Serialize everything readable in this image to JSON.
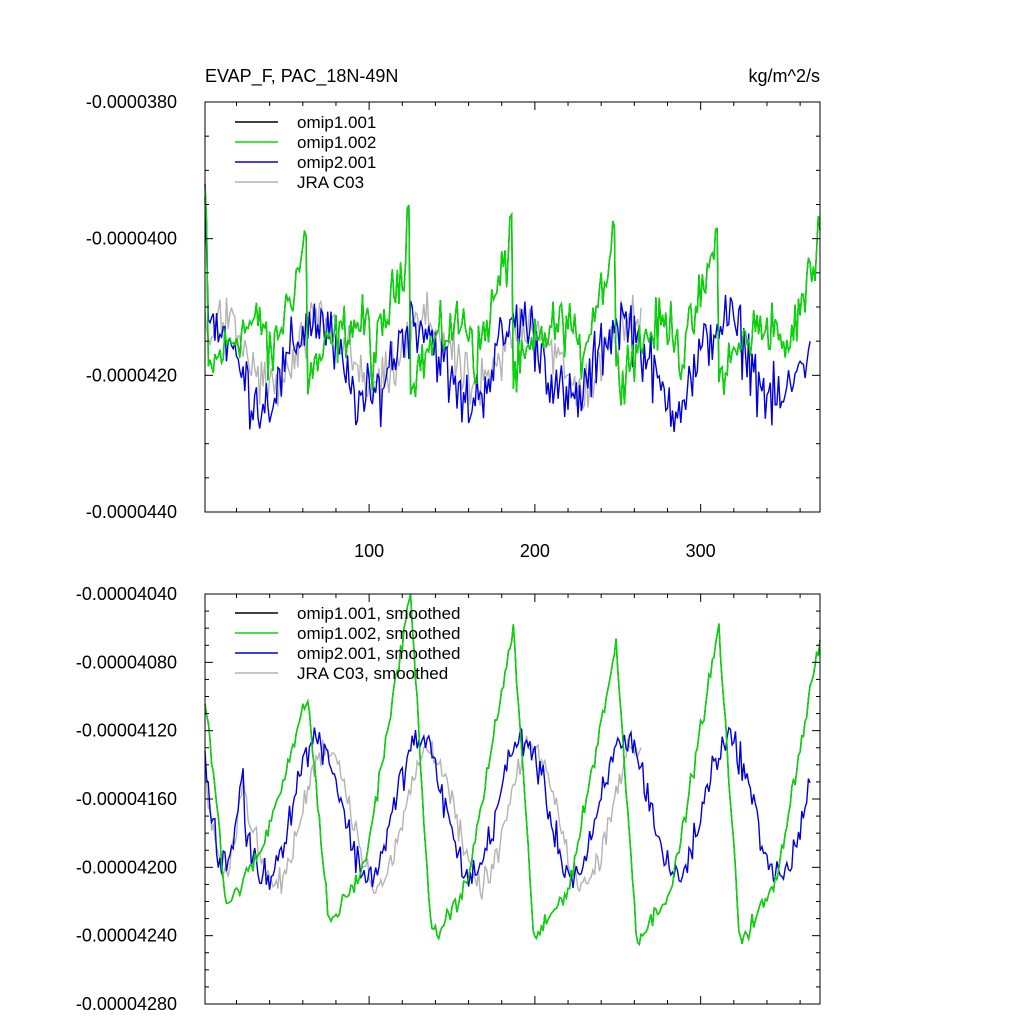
{
  "chart_data": [
    {
      "type": "line",
      "title": "EVAP_F, PAC_18N-49N",
      "units": "kg/m^2/s",
      "xlim": [
        1,
        372
      ],
      "ylim": [
        -4.4e-05,
        -3.8e-05
      ],
      "yticks": [
        -3.8e-05,
        -4e-05,
        -4.2e-05,
        -4.4e-05
      ],
      "ytick_labels": [
        "-0.0000380",
        "-0.0000400",
        "-0.0000420",
        "-0.0000440"
      ],
      "xticks": [
        100,
        200,
        300
      ],
      "xtick_labels": [
        "100",
        "200",
        "300"
      ],
      "legend_position": "top-left",
      "series": [
        {
          "name": "omip1.001",
          "color": "#000000",
          "length": 372,
          "cycle_peaks": [
            -3.99e-05,
            -3.96e-05,
            -3.97e-05,
            -3.98e-05,
            -3.99e-05,
            -3.97e-05
          ]
        },
        {
          "name": "omip1.002",
          "color": "#00dd00",
          "length": 372,
          "cycle_peaks": [
            -3.99e-05,
            -3.96e-05,
            -3.97e-05,
            -3.98e-05,
            -3.99e-05,
            -3.97e-05
          ]
        },
        {
          "name": "omip2.001",
          "color": "#0000dd",
          "length": 366,
          "level_range": [
            -4.31e-05,
            -4.09e-05
          ]
        },
        {
          "name": "JRA C03",
          "color": "#b4b4b4",
          "length": 264,
          "level_range": [
            -4.28e-05,
            -4.08e-05
          ]
        }
      ]
    },
    {
      "type": "line",
      "xlim": [
        1,
        372
      ],
      "ylim": [
        -4.28e-05,
        -4.04e-05
      ],
      "yticks": [
        -4.04e-05,
        -4.08e-05,
        -4.12e-05,
        -4.16e-05,
        -4.2e-05,
        -4.24e-05,
        -4.28e-05
      ],
      "ytick_labels": [
        "-0.00004040",
        "-0.00004080",
        "-0.00004120",
        "-0.00004160",
        "-0.00004200",
        "-0.00004240",
        "-0.00004280"
      ],
      "legend_position": "top-left",
      "series": [
        {
          "name": "omip1.001, smoothed",
          "color": "#000000",
          "length": 372
        },
        {
          "name": "omip1.002, smoothed",
          "color": "#00dd00",
          "length": 372,
          "peaks": [
            -4.1e-05,
            -4.04e-05,
            -4.06e-05,
            -4.07e-05,
            -4.06e-05,
            -4.06e-05
          ],
          "troughs": [
            -4.22e-05,
            -4.23e-05,
            -4.24e-05,
            -4.24e-05,
            -4.24e-05,
            -4.24e-05
          ]
        },
        {
          "name": "omip2.001, smoothed",
          "color": "#0000dd",
          "length": 366,
          "level_range": [
            -4.21e-05,
            -4.12e-05
          ]
        },
        {
          "name": "JRA C03, smoothed",
          "color": "#b4b4b4",
          "length": 264,
          "level_range": [
            -4.21e-05,
            -4.12e-05
          ]
        }
      ]
    }
  ]
}
